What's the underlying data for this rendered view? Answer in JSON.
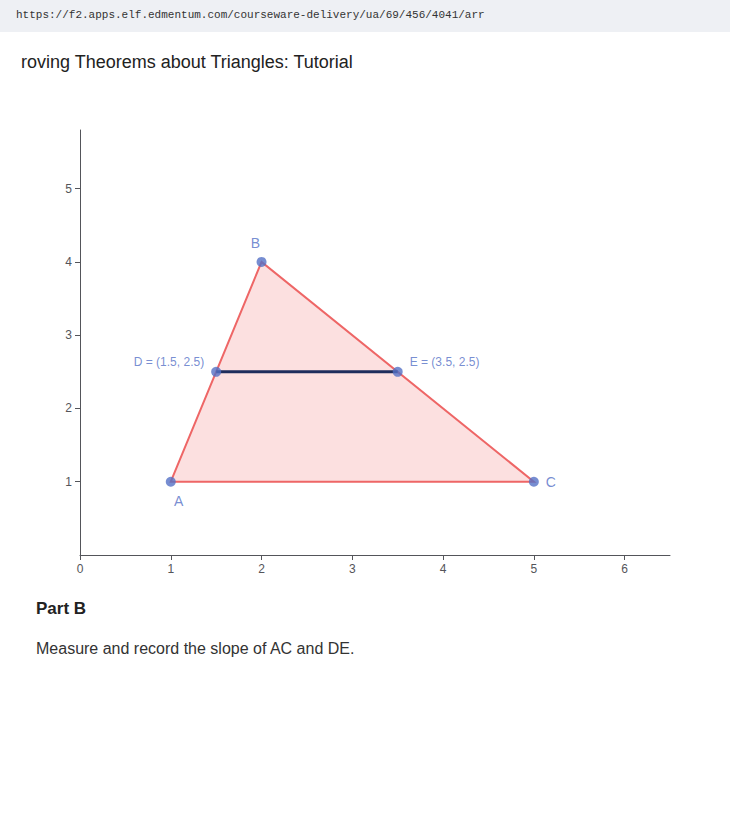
{
  "chart_data": {
    "type": "scatter",
    "title": "roving Theorems about Triangles: Tutorial",
    "annotations": [
      "https://f2.apps.elf.edmentum.com/courseware-delivery/ua/69/456/4041/arr",
      "Part B",
      "Measure and record the slope of AC and DE."
    ],
    "names": [
      "A",
      "B",
      "C",
      "D",
      "E"
    ],
    "x": [
      1,
      2,
      5,
      1.5,
      3.5
    ],
    "values": [
      1,
      4,
      1,
      2.5,
      2.5
    ],
    "point_labels": [
      "A",
      "B",
      "C",
      "D = (1.5, 2.5)",
      "E = (3.5, 2.5)"
    ],
    "triangle": [
      "A",
      "B",
      "C"
    ],
    "segment": [
      "D",
      "E"
    ],
    "xlim": [
      0,
      6.5
    ],
    "xticks": [
      0,
      1,
      2,
      3,
      4,
      5,
      6
    ],
    "ylim": [
      0,
      5.8
    ],
    "yticks": [
      1,
      2,
      3,
      4,
      5
    ],
    "grid": false
  }
}
